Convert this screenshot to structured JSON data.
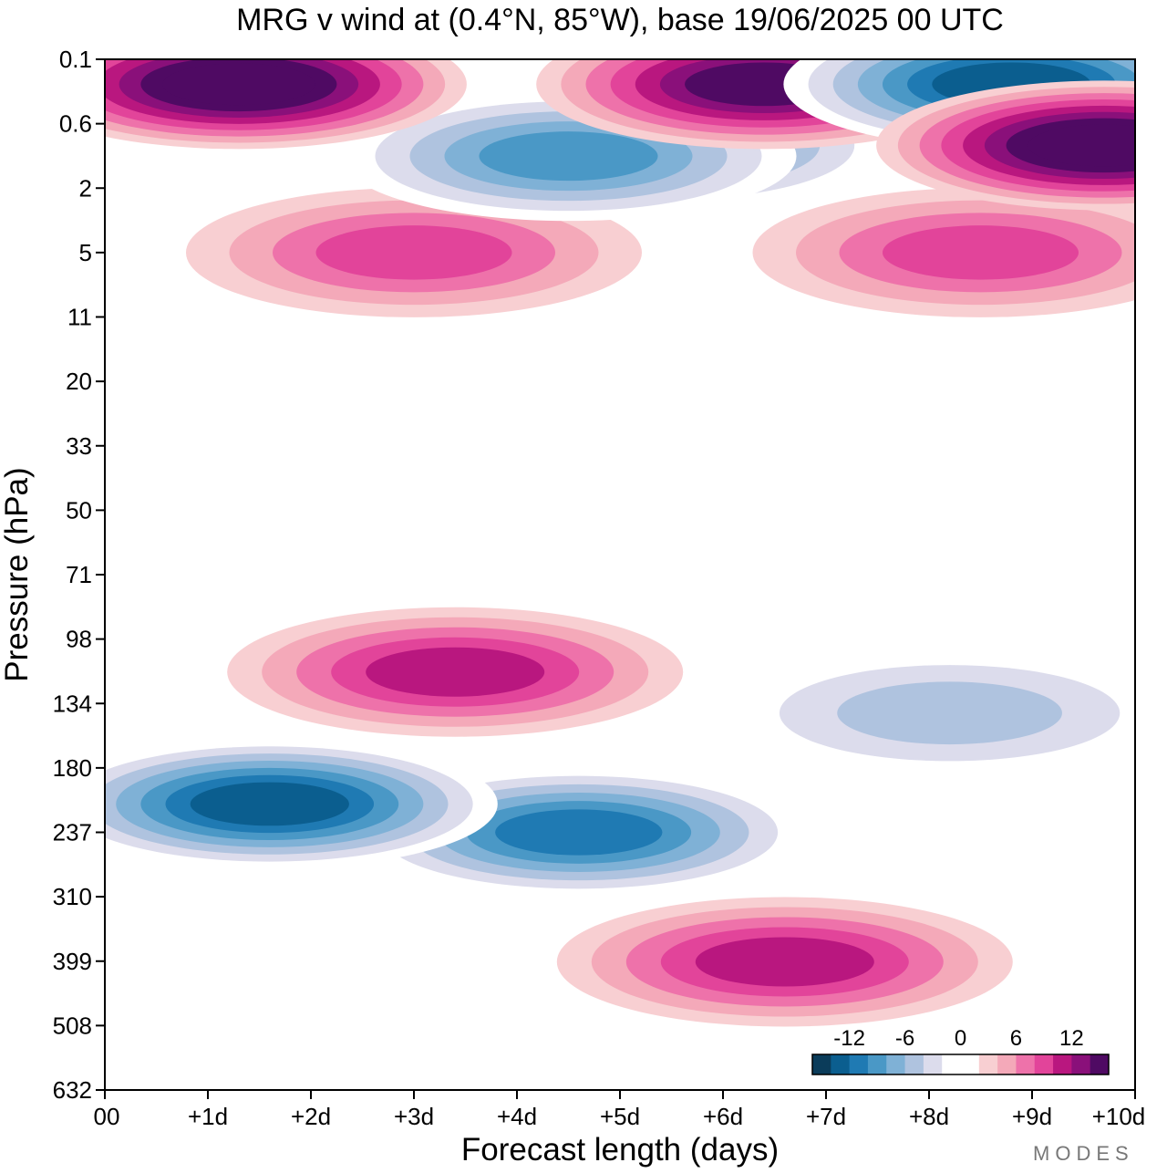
{
  "chart_data": {
    "type": "heatmap",
    "title": "MRG v wind at (0.4°N, 85°W),  base 19/06/2025  00 UTC",
    "xlabel": "Forecast length (days)",
    "ylabel": "Pressure (hPa)",
    "x_ticks": [
      "00",
      "+1d",
      "+2d",
      "+3d",
      "+4d",
      "+5d",
      "+6d",
      "+7d",
      "+8d",
      "+9d",
      "+10d"
    ],
    "y_ticks": [
      "0.1",
      "0.6",
      "2",
      "5",
      "11",
      "20",
      "33",
      "50",
      "71",
      "98",
      "134",
      "180",
      "237",
      "310",
      "399",
      "508",
      "632"
    ],
    "xlim": [
      0,
      10
    ],
    "y_scale": "log (inverted)",
    "colorbar": {
      "placement": "bottom-right",
      "tick_labels": [
        "-12",
        "-6",
        "0",
        "6",
        "12"
      ],
      "levels": [
        -14,
        -12,
        -10,
        -8,
        -6,
        -4,
        -2,
        0,
        2,
        4,
        6,
        8,
        10,
        12,
        14
      ],
      "colors": [
        "#0b3c5a",
        "#0b5e8f",
        "#1f7ab3",
        "#4a98c6",
        "#7fb1d6",
        "#afc3df",
        "#dcdcec",
        "#ffffff",
        "#ffffff",
        "#f8cfd2",
        "#f4a9b9",
        "#ee72aa",
        "#e2449a",
        "#b9177f",
        "#8a107a",
        "#4f0a63"
      ]
    },
    "features": [
      {
        "label": "strong negative",
        "x": 1.6,
        "pressure": 210,
        "value": -14
      },
      {
        "label": "negative",
        "x": 4.6,
        "pressure": 237,
        "value": -11
      },
      {
        "label": "negative",
        "x": 8.2,
        "pressure": 140,
        "value": -5
      },
      {
        "label": "positive",
        "x": 3.4,
        "pressure": 115,
        "value": 9
      },
      {
        "label": "positive",
        "x": 6.6,
        "pressure": 400,
        "value": 9
      },
      {
        "label": "positive",
        "x": 8.5,
        "pressure": 5,
        "value": 8
      },
      {
        "label": "positive",
        "x": 3.0,
        "pressure": 5,
        "value": 7
      },
      {
        "label": "strong positive",
        "x": 1.3,
        "pressure": 0.2,
        "value": 15
      },
      {
        "label": "strong positive",
        "x": 6.4,
        "pressure": 0.2,
        "value": 14
      },
      {
        "label": "strong positive",
        "x": 9.7,
        "pressure": 0.9,
        "value": 15
      },
      {
        "label": "strong negative",
        "x": 8.8,
        "pressure": 0.2,
        "value": -14
      },
      {
        "label": "negative",
        "x": 5.4,
        "pressure": 0.9,
        "value": -9
      },
      {
        "label": "negative",
        "x": 4.5,
        "pressure": 1.1,
        "value": -9
      }
    ]
  },
  "branding": {
    "text": "MODES"
  }
}
